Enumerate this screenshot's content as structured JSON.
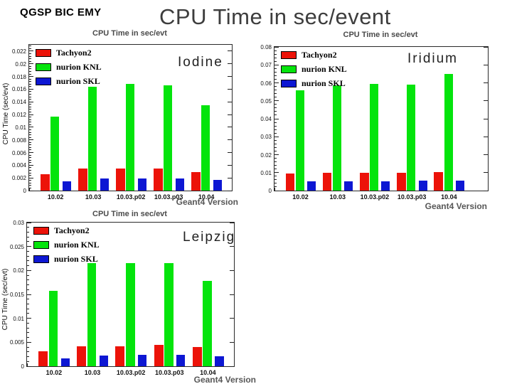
{
  "slide": {
    "corner_tag": "QGSP BIC EMY",
    "title": "CPU Time in sec/event"
  },
  "chart_data": [
    {
      "type": "bar",
      "title": "CPU Time in sec/evt",
      "region_label": "Iodine",
      "xlabel": "Geant4 Version",
      "ylabel": "CPU Time (sec/evt)",
      "categories": [
        "10.02",
        "10.03",
        "10.03.p02",
        "10.03.p03",
        "10.04"
      ],
      "series": [
        {
          "name": "Tachyon2",
          "color": "#ec1309",
          "values": [
            0.0026,
            0.0035,
            0.0035,
            0.0035,
            0.0029
          ]
        },
        {
          "name": "nurion KNL",
          "color": "#04e40c",
          "values": [
            0.0117,
            0.0164,
            0.0168,
            0.0166,
            0.0135
          ]
        },
        {
          "name": "nurion SKL",
          "color": "#0d17d3",
          "values": [
            0.0015,
            0.0019,
            0.0019,
            0.0019,
            0.0017
          ]
        }
      ],
      "ylim": [
        0,
        0.023
      ],
      "ytick_step": 0.002,
      "legend_position": "top-left",
      "grid": false
    },
    {
      "type": "bar",
      "title": "CPU Time in sec/evt",
      "region_label": "Iridium",
      "xlabel": "Geant4 Version",
      "ylabel": "",
      "categories": [
        "10.02",
        "10.03",
        "10.03.p02",
        "10.03.p03",
        "10.04"
      ],
      "series": [
        {
          "name": "Tachyon2",
          "color": "#ec1309",
          "values": [
            0.0095,
            0.01,
            0.0099,
            0.01,
            0.0104
          ]
        },
        {
          "name": "nurion KNL",
          "color": "#04e40c",
          "values": [
            0.0558,
            0.0585,
            0.0596,
            0.0591,
            0.0648
          ]
        },
        {
          "name": "nurion SKL",
          "color": "#0d17d3",
          "values": [
            0.005,
            0.0052,
            0.0053,
            0.0055,
            0.0055
          ]
        }
      ],
      "ylim": [
        0,
        0.08
      ],
      "ytick_step": 0.01,
      "legend_position": "top-left",
      "grid": false
    },
    {
      "type": "bar",
      "title": "CPU Time in sec/evt",
      "region_label": "Leipzig",
      "xlabel": "Geant4 Version",
      "ylabel": "CPU Time (sec/evt)",
      "categories": [
        "10.02",
        "10.03",
        "10.03.p02",
        "10.03.p03",
        "10.04"
      ],
      "series": [
        {
          "name": "Tachyon2",
          "color": "#ec1309",
          "values": [
            0.0031,
            0.0042,
            0.0042,
            0.0044,
            0.004
          ]
        },
        {
          "name": "nurion KNL",
          "color": "#04e40c",
          "values": [
            0.0158,
            0.0215,
            0.0216,
            0.0216,
            0.0178
          ]
        },
        {
          "name": "nurion SKL",
          "color": "#0d17d3",
          "values": [
            0.0017,
            0.0023,
            0.0024,
            0.0024,
            0.0021
          ]
        }
      ],
      "ylim": [
        0,
        0.03
      ],
      "ytick_step": 0.005,
      "legend_position": "top-left",
      "grid": false
    }
  ]
}
